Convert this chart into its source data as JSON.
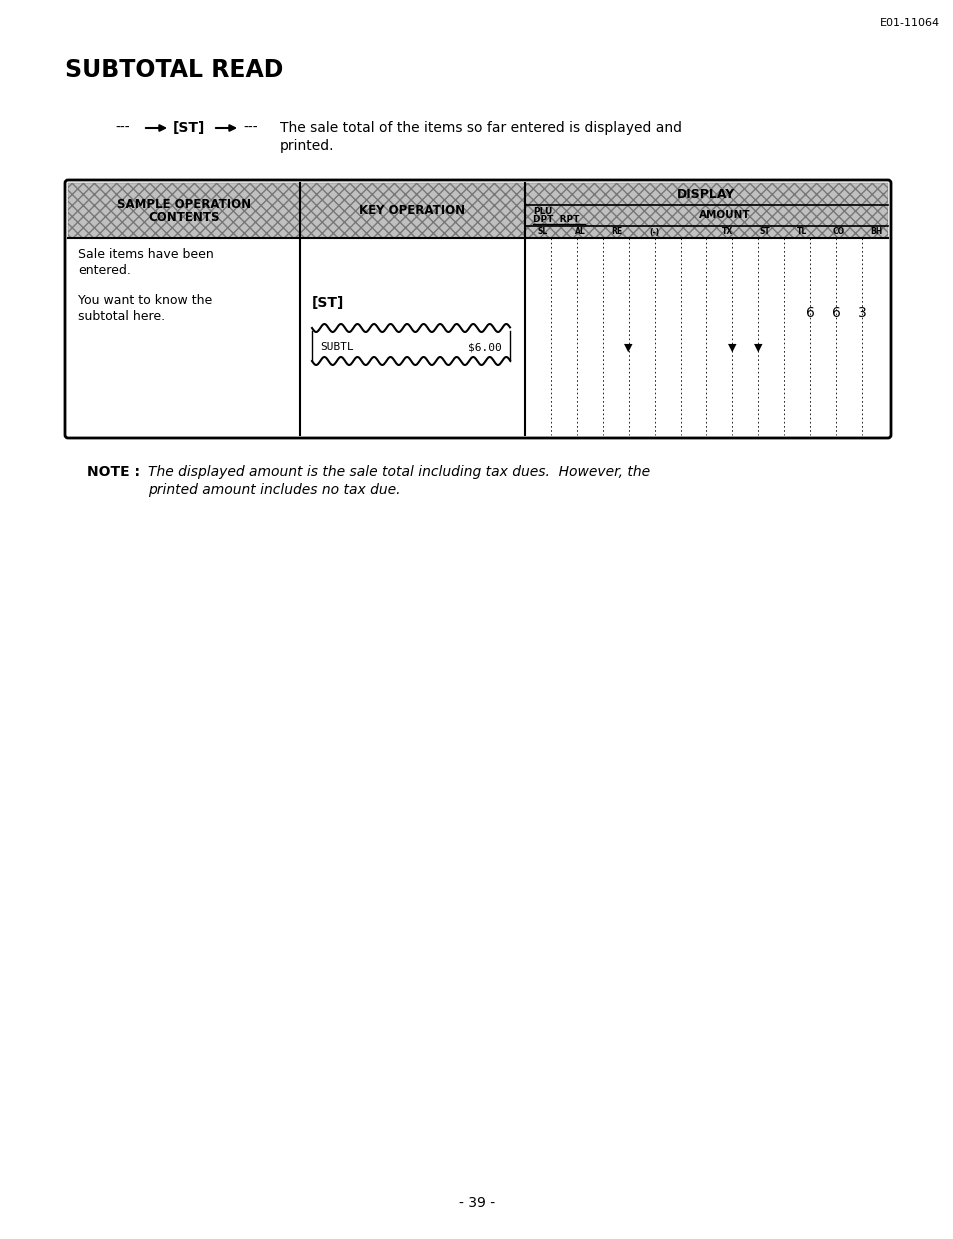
{
  "page_id": "E01-11064",
  "title": "SUBTOTAL READ",
  "desc_line1": "The sale total of the items so far entered is displayed and",
  "desc_line2": "printed.",
  "col1_header_line1": "SAMPLE OPERATION",
  "col1_header_line2": "CONTENTS",
  "col2_header": "KEY OPERATION",
  "col3_header": "DISPLAY",
  "plu_label": "PLU",
  "dpt_rpt_label": "DPT  RPT",
  "amount_label": "AMOUNT",
  "row3_labels": [
    "SL",
    "AL",
    "RE",
    "(-)",
    "",
    "TX",
    "ST",
    "TL",
    "CO",
    "BH"
  ],
  "cell1_line1": "Sale items have been",
  "cell1_line2": "entered.",
  "cell1_line3": "You want to know the",
  "cell1_line4": "subtotal here.",
  "cell2_key": "[ST]",
  "subtl_label": "SUBTL",
  "subtl_value": "$6.00",
  "digits": [
    "6",
    "6",
    "3"
  ],
  "note_bold": "NOTE :",
  "note_line1": "The displayed amount is the sale total including tax dues.  However, the",
  "note_line2": "printed amount includes no tax due.",
  "page_num": "- 39 -",
  "bg_color": "#ffffff",
  "hatch_color": "#aaaaaa",
  "table_border_color": "#000000"
}
